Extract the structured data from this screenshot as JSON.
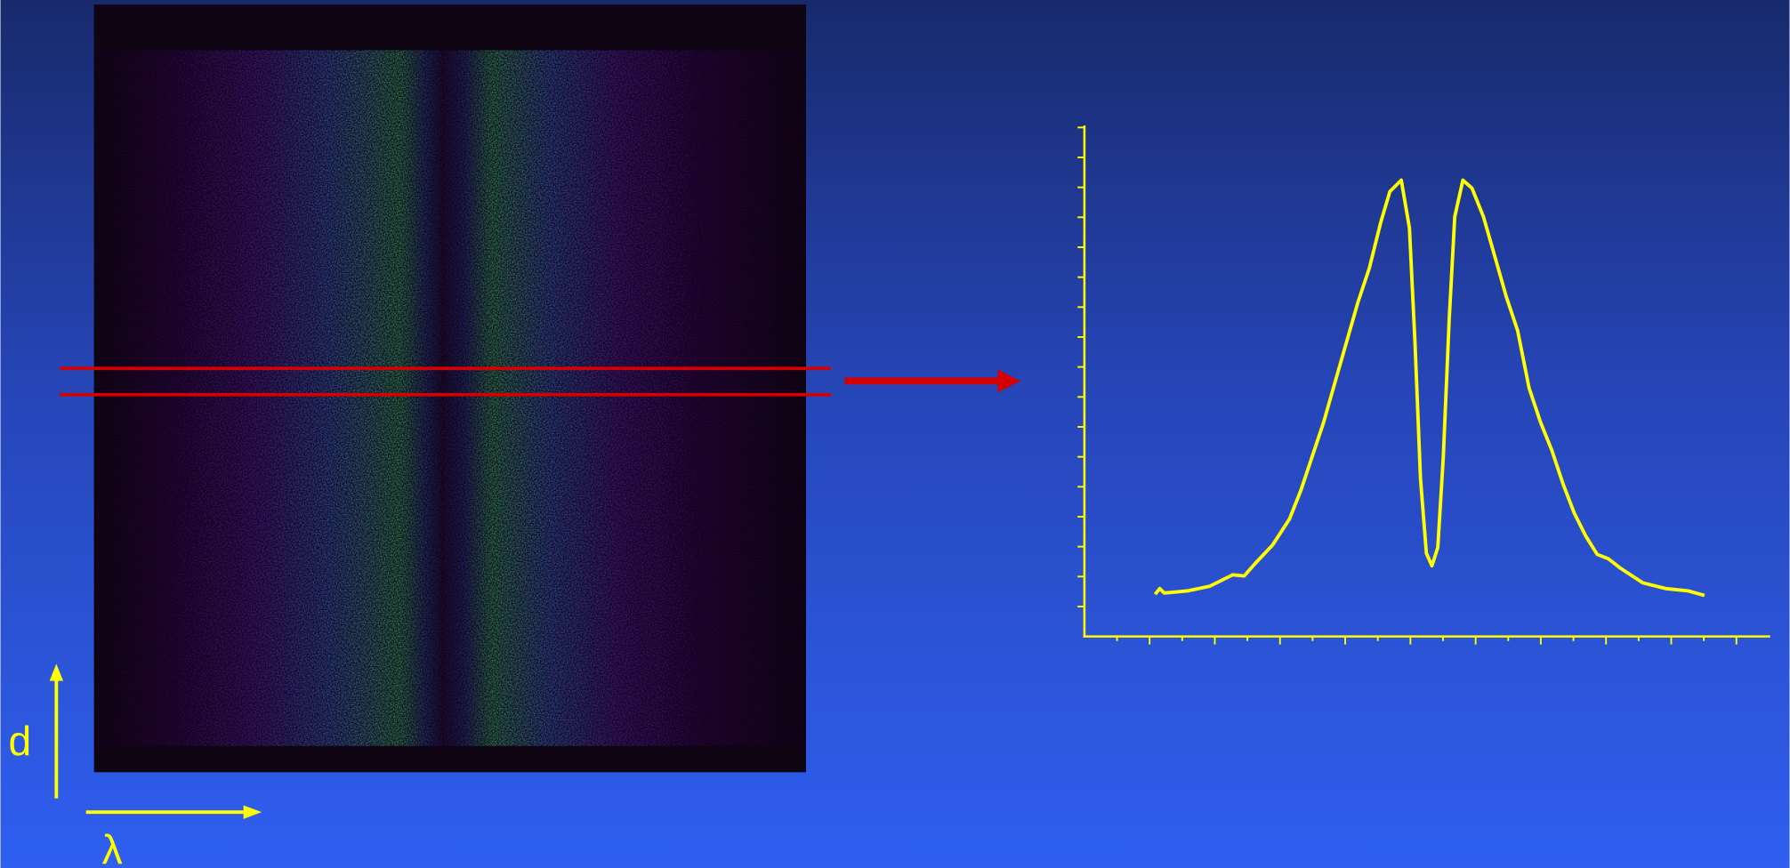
{
  "labels": {
    "vertical_axis": "d",
    "horizontal_axis": "λ"
  },
  "chart_data": {
    "type": "line",
    "x": [
      2.17,
      2.31,
      2.45,
      3.15,
      3.85,
      4.55,
      4.9,
      5.24,
      5.77,
      6.29,
      6.64,
      6.99,
      7.34,
      7.69,
      8.04,
      8.39,
      8.74,
      9.09,
      9.37,
      9.72,
      9.97,
      10.14,
      10.31,
      10.49,
      10.66,
      10.84,
      11.01,
      11.19,
      11.36,
      11.61,
      11.89,
      12.24,
      12.59,
      12.94,
      13.29,
      13.64,
      13.99,
      14.34,
      14.69,
      15.03,
      15.38,
      15.73,
      16.08,
      16.43,
      17.13,
      17.83,
      18.53,
      19.02
    ],
    "series": [
      {
        "color": "#ffff00",
        "values": [
          1.41,
          1.6,
          1.45,
          1.52,
          1.68,
          2.06,
          2.02,
          2.44,
          3.05,
          3.92,
          4.88,
          6.02,
          7.16,
          8.5,
          9.83,
          11.16,
          12.3,
          13.83,
          14.86,
          15.24,
          13.64,
          9.83,
          5.26,
          2.78,
          2.36,
          2.97,
          6.02,
          10.59,
          14.02,
          15.24,
          14.97,
          14.02,
          12.69,
          11.35,
          10.21,
          8.3,
          7.16,
          6.21,
          5.07,
          4.11,
          3.35,
          2.74,
          2.59,
          2.29,
          1.79,
          1.6,
          1.52,
          1.37
        ]
      }
    ],
    "xlim": [
      0,
      21
    ],
    "ylim": [
      0,
      17
    ],
    "xticks": [
      1,
      2,
      3,
      4,
      5,
      6,
      7,
      8,
      9,
      10,
      11,
      12,
      13,
      14,
      15,
      16,
      17,
      18,
      19,
      20
    ],
    "yticks": [
      1,
      2,
      3,
      4,
      5,
      6,
      7,
      8,
      9,
      10,
      11,
      12,
      13,
      14,
      15,
      16,
      17
    ]
  }
}
